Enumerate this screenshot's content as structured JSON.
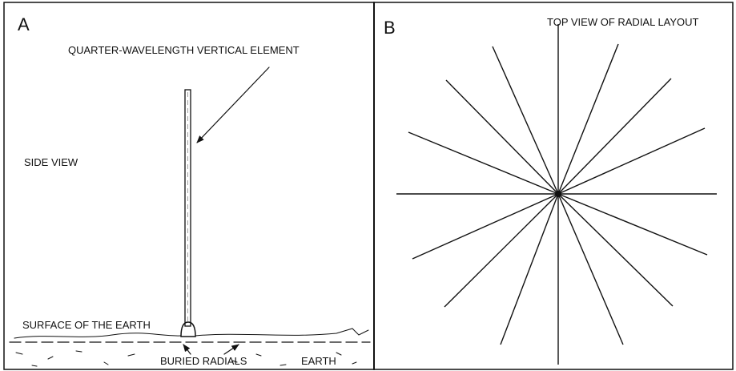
{
  "panels": [
    {
      "letter": "A",
      "element_label": "QUARTER-WAVELENGTH VERTICAL ELEMENT",
      "view_label": "SIDE VIEW",
      "surface_label": "SURFACE OF THE EARTH",
      "radials_label": "BURIED RADIALS",
      "earth_label": "EARTH"
    },
    {
      "letter": "B",
      "title": "TOP VIEW OF RADIAL LAYOUT"
    }
  ]
}
